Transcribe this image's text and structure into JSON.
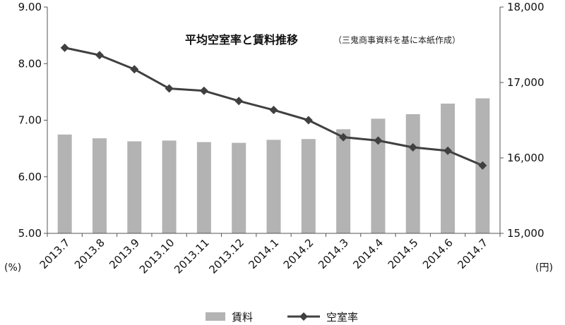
{
  "chart_data": {
    "type": "bar+line",
    "title": "平均空室率と賃料推移",
    "subtitle": "（三鬼商事資料を基に本紙作成）",
    "categories": [
      "2013.7",
      "2013.8",
      "2013.9",
      "2013.10",
      "2013.11",
      "2013.12",
      "2014.1",
      "2014.2",
      "2014.3",
      "2014.4",
      "2014.5",
      "2014.6",
      "2014.7"
    ],
    "series": [
      {
        "name": "賃料",
        "type": "bar",
        "axis": "right",
        "color": "#b3b3b3",
        "values": [
          16310,
          16260,
          16220,
          16230,
          16210,
          16200,
          16240,
          16250,
          16380,
          16520,
          16580,
          16720,
          16790
        ]
      },
      {
        "name": "空室率",
        "type": "line",
        "axis": "left",
        "color": "#404040",
        "marker": "diamond",
        "values": [
          8.28,
          8.15,
          7.9,
          7.56,
          7.52,
          7.34,
          7.18,
          7.0,
          6.7,
          6.64,
          6.52,
          6.46,
          6.2
        ]
      }
    ],
    "y_left": {
      "label": "(%)",
      "ylim": [
        5.0,
        9.0
      ],
      "ticks": [
        "5.00",
        "6.00",
        "7.00",
        "8.00",
        "9.00"
      ]
    },
    "y_right": {
      "label": "(円)",
      "ylim": [
        15000,
        18000
      ],
      "ticks": [
        "15,000",
        "16,000",
        "17,000",
        "18,000"
      ]
    },
    "grid": false,
    "legend_position": "bottom"
  }
}
